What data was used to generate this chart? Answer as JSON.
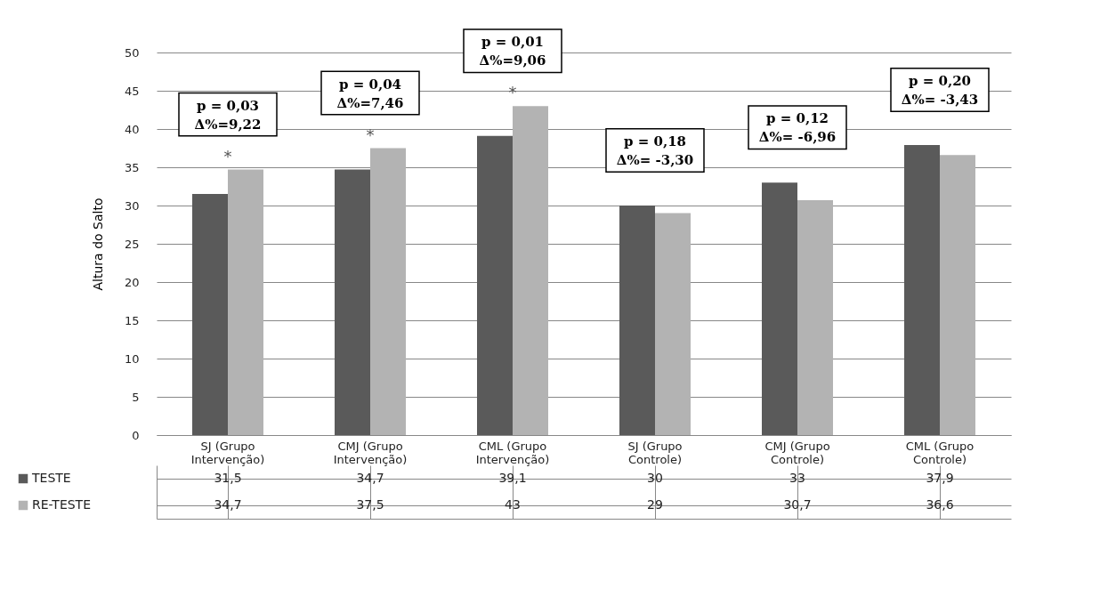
{
  "chart_data": {
    "type": "bar",
    "ylabel": "Altura do Salto",
    "categories": [
      "SJ (Grupo Intervenção)",
      "CMJ (Grupo Intervenção)",
      "CML (Grupo Intervenção)",
      "SJ (Grupo Controle)",
      "CMJ (Grupo Controle)",
      "CML (Grupo Controle)"
    ],
    "series": [
      {
        "name": "TESTE",
        "color": "#5a5a5a",
        "values": [
          31.5,
          34.7,
          39.1,
          30,
          33,
          37.9
        ],
        "value_labels": [
          "31,5",
          "34,7",
          "39,1",
          "30",
          "33",
          "37,9"
        ]
      },
      {
        "name": "RE-TESTE",
        "color": "#b3b3b3",
        "values": [
          34.7,
          37.5,
          43,
          29,
          30.7,
          36.6
        ],
        "value_labels": [
          "34,7",
          "37,5",
          "43",
          "29",
          "30,7",
          "36,6"
        ]
      }
    ],
    "ylim": [
      0,
      50
    ],
    "yticks": [
      0,
      5,
      10,
      15,
      20,
      25,
      30,
      35,
      40,
      45,
      50
    ],
    "grid": "y",
    "legend": "bottom left",
    "annotations": [
      "p = 0,03\nΔ%=9,22",
      "p = 0,04\nΔ%=7,46",
      "p = 0,01\nΔ%=9,06",
      "p = 0,18\nΔ%= -3,30",
      "p = 0,12\nΔ%= -6,96",
      "p = 0,20\nΔ%= -3,43",
      "*",
      "*",
      "*"
    ]
  }
}
